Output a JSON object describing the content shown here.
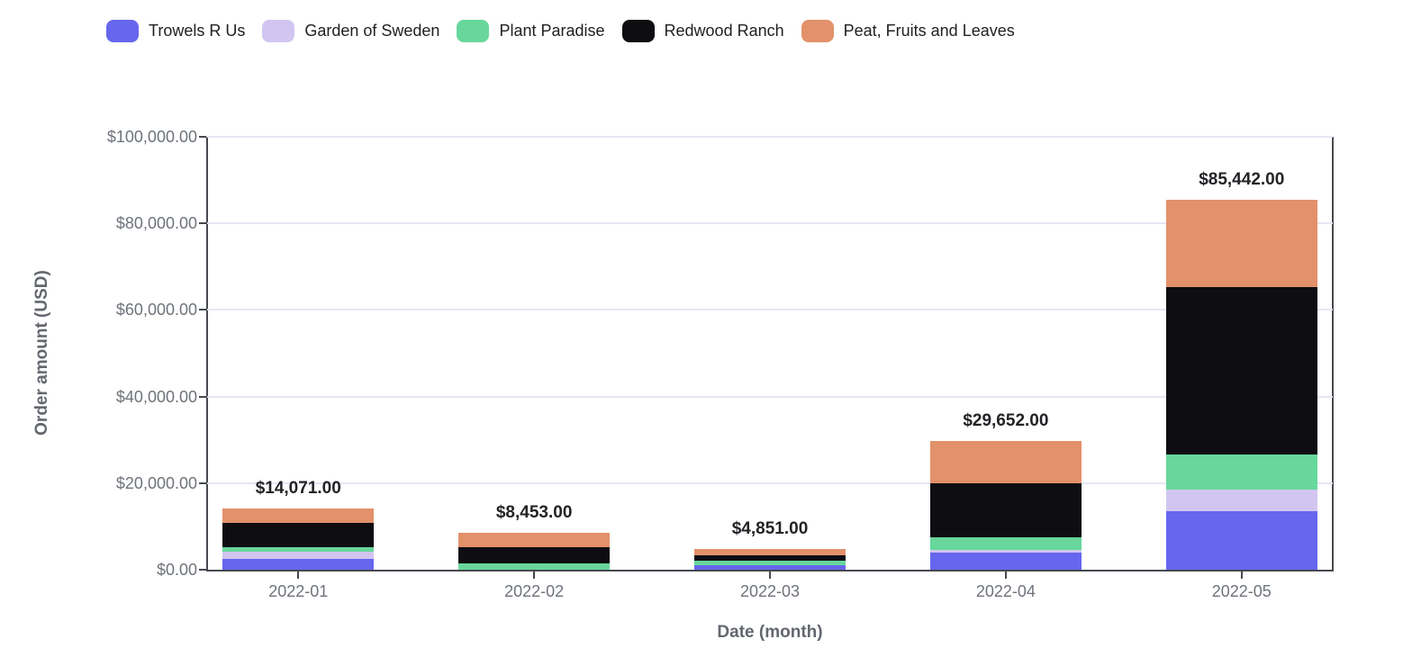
{
  "chart_data": {
    "type": "bar",
    "stacked": true,
    "title": "",
    "xlabel": "Date (month)",
    "ylabel": "Order amount (USD)",
    "ylim": [
      0,
      100000
    ],
    "grid": true,
    "legend_position": "top",
    "categories": [
      "2022-01",
      "2022-02",
      "2022-03",
      "2022-04",
      "2022-05"
    ],
    "ytick_values": [
      0,
      20000,
      40000,
      60000,
      80000,
      100000
    ],
    "ytick_labels": [
      "$0.00",
      "$20,000.00",
      "$40,000.00",
      "$60,000.00",
      "$80,000.00",
      "$100,000.00"
    ],
    "totals": [
      14071,
      8453,
      4851,
      29652,
      85442
    ],
    "total_labels": [
      "$14,071.00",
      "$8,453.00",
      "$4,851.00",
      "$29,652.00",
      "$85,442.00"
    ],
    "series": [
      {
        "name": "Trowels R Us",
        "color": "#6666ee",
        "values": [
          2600,
          0,
          1000,
          4000,
          13500
        ]
      },
      {
        "name": "Garden of Sweden",
        "color": "#d2c6f1",
        "values": [
          1500,
          0,
          0,
          550,
          5000
        ]
      },
      {
        "name": "Plant Paradise",
        "color": "#67d79b",
        "values": [
          1100,
          1400,
          1150,
          3000,
          8200
        ]
      },
      {
        "name": "Redwood Ranch",
        "color": "#0d0d12",
        "values": [
          5600,
          3900,
          1150,
          12500,
          38600
        ]
      },
      {
        "name": "Peat, Fruits and Leaves",
        "color": "#e2916a",
        "values": [
          3271,
          3153,
          1551,
          9602,
          20142
        ]
      }
    ]
  }
}
